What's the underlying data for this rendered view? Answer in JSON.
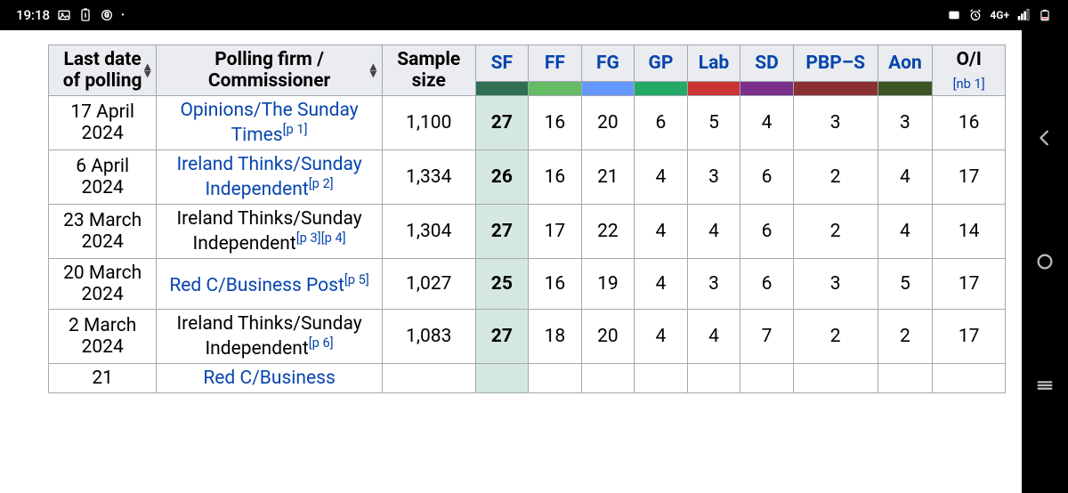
{
  "statusbar": {
    "time": "19:18",
    "network_label": "4G+"
  },
  "colors": {
    "header_bg": "#eaecf0",
    "border": "#a2a9b1",
    "link": "#0645ad",
    "highlight_bg": "#d5e8df"
  },
  "table": {
    "headers": {
      "date": "Last date of polling",
      "firm": "Polling firm / Commissioner",
      "sample": "Sample size",
      "parties": [
        "SF",
        "FF",
        "FG",
        "GP",
        "Lab",
        "SD",
        "PBP–S",
        "Aon"
      ],
      "oi": "O/I",
      "oi_note": "[nb 1]"
    },
    "party_colors": [
      "#2f6f53",
      "#66bb66",
      "#6699ff",
      "#22aa66",
      "#cc3333",
      "#7a2f8a",
      "#8a3030",
      "#3d5522"
    ],
    "rows": [
      {
        "date": "17 April 2024",
        "firm": "Opinions/The Sunday Times",
        "firm_link": true,
        "refs": [
          "[p 1]"
        ],
        "sample": "1,100",
        "vals": [
          "27",
          "16",
          "20",
          "6",
          "5",
          "4",
          "3",
          "3",
          "16"
        ],
        "highlight_col": 0
      },
      {
        "date": "6 April 2024",
        "firm": "Ireland Thinks/Sunday Independent",
        "firm_link": true,
        "refs": [
          "[p 2]"
        ],
        "sample": "1,334",
        "vals": [
          "26",
          "16",
          "21",
          "4",
          "3",
          "6",
          "2",
          "4",
          "17"
        ],
        "highlight_col": 0
      },
      {
        "date": "23 March 2024",
        "firm": "Ireland Thinks/Sunday Independent",
        "firm_link": false,
        "refs": [
          "[p 3]",
          "[p 4]"
        ],
        "sample": "1,304",
        "vals": [
          "27",
          "17",
          "22",
          "4",
          "4",
          "6",
          "2",
          "4",
          "14"
        ],
        "highlight_col": 0
      },
      {
        "date": "20 March 2024",
        "firm": "Red C/Business Post",
        "firm_link": true,
        "refs": [
          "[p 5]"
        ],
        "sample": "1,027",
        "vals": [
          "25",
          "16",
          "19",
          "4",
          "3",
          "6",
          "3",
          "5",
          "17"
        ],
        "highlight_col": 0
      },
      {
        "date": "2 March 2024",
        "firm": "Ireland Thinks/Sunday Independent",
        "firm_link": false,
        "refs": [
          "[p 6]"
        ],
        "sample": "1,083",
        "vals": [
          "27",
          "18",
          "20",
          "4",
          "4",
          "7",
          "2",
          "2",
          "17"
        ],
        "highlight_col": 0
      },
      {
        "date": "21",
        "firm": "Red C/Business",
        "firm_link": true,
        "refs": [],
        "sample": "",
        "vals": [
          "",
          "",
          "",
          "",
          "",
          "",
          "",
          "",
          ""
        ],
        "highlight_col": 0
      }
    ]
  }
}
